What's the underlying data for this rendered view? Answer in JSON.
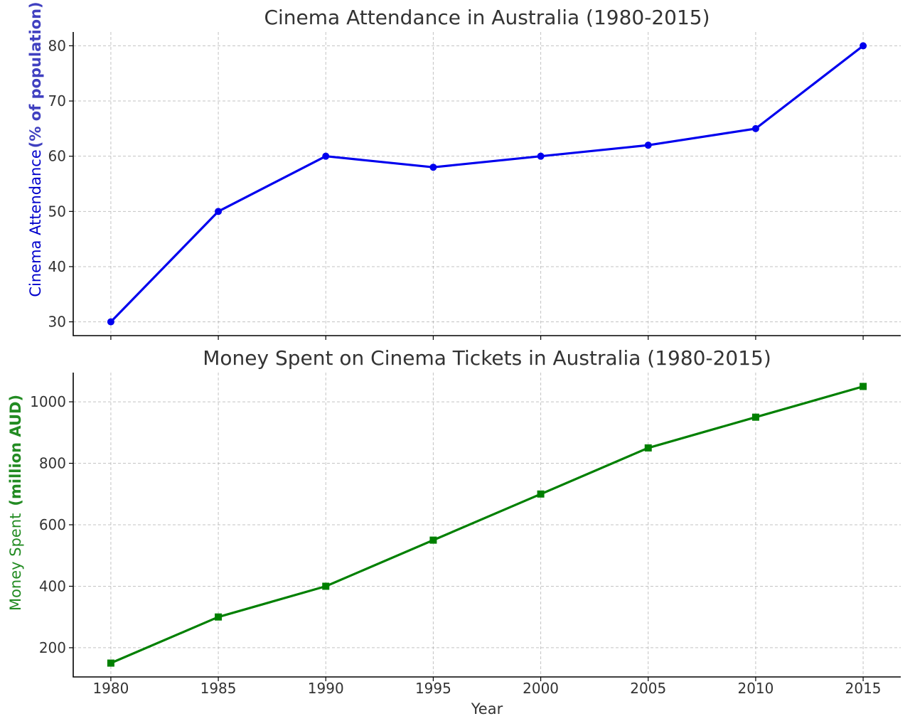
{
  "chart_data": [
    {
      "type": "line",
      "title": "Cinema Attendance in Australia (1980-2015)",
      "ylabel": "Cinema Attendance (% of population)",
      "ylabel_parts": [
        "Cinema Attendance",
        "(% of population)"
      ],
      "xlabel": "",
      "color": "#0000ee",
      "marker": "circle",
      "x": [
        1980,
        1985,
        1990,
        1995,
        2000,
        2005,
        2010,
        2015
      ],
      "series": [
        {
          "values": [
            30,
            50,
            60,
            58,
            60,
            62,
            65,
            80
          ]
        }
      ],
      "ylim": [
        27.5,
        82.5
      ],
      "yticks": [
        30,
        40,
        50,
        60,
        70,
        80
      ],
      "grid": true
    },
    {
      "type": "line",
      "title": "Money Spent on Cinema Tickets in Australia (1980-2015)",
      "ylabel": "Money Spent  (million AUD)",
      "ylabel_parts": [
        "Money Spent",
        "(million AUD)"
      ],
      "xlabel": "Year",
      "color": "#008000",
      "marker": "square",
      "x": [
        1980,
        1985,
        1990,
        1995,
        2000,
        2005,
        2010,
        2015
      ],
      "series": [
        {
          "values": [
            150,
            300,
            400,
            550,
            700,
            850,
            950,
            1050
          ]
        }
      ],
      "ylim": [
        105,
        1095
      ],
      "yticks": [
        200,
        400,
        600,
        800,
        1000
      ],
      "grid": true
    }
  ],
  "x_axis": {
    "xlim": [
      1978.25,
      2016.75
    ],
    "xticks": [
      "1980",
      "1985",
      "1990",
      "1995",
      "2000",
      "2005",
      "2010",
      "2015"
    ]
  }
}
